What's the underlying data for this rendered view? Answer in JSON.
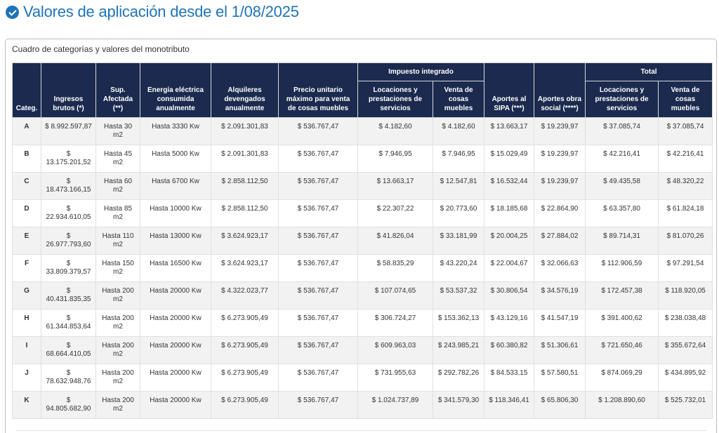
{
  "page_title": "Valores de aplicación desde el 1/08/2025",
  "colors": {
    "accent": "#1f73b7",
    "header_bg": "#1b2a4e"
  },
  "card_caption": "Cuadro de categorías y valores del monotributo",
  "headers": {
    "categ": "Categ.",
    "ingresos": "Ingresos brutos (*)",
    "superficie": "Sup. Afectada (**)",
    "energia": "Energía eléctrica consumida anualmente",
    "alquileres": "Alquileres devengados anualmente",
    "precio": "Precio unitario máximo para venta de cosas muebles",
    "impuesto_group": "Impuesto integrado",
    "imp_locaciones": "Locaciones y prestaciones de servicios",
    "imp_venta": "Venta de cosas muebles",
    "sipa": "Aportes al SIPA (***)",
    "obra_social": "Aportes obra social (****)",
    "total_group": "Total",
    "tot_locaciones": "Locaciones y prestaciones de servicios",
    "tot_venta": "Venta de cosas muebles"
  },
  "rows": [
    {
      "cat": "A",
      "ingresos": "$ 8.992.597,87",
      "sup": "Hasta 30 m2",
      "energia": "Hasta 3330 Kw",
      "alquileres": "$ 2.091.301,83",
      "precio": "$ 536.767,47",
      "imp_loc": "$ 4.182,60",
      "imp_venta": "$ 4.182,60",
      "sipa": "$ 13.663,17",
      "obra": "$ 19.239,97",
      "tot_loc": "$ 37.085,74",
      "tot_venta": "$ 37.085,74"
    },
    {
      "cat": "B",
      "ingresos": "$ 13.175.201,52",
      "sup": "Hasta 45 m2",
      "energia": "Hasta 5000 Kw",
      "alquileres": "$ 2.091.301,83",
      "precio": "$ 536.767,47",
      "imp_loc": "$ 7.946,95",
      "imp_venta": "$ 7.946,95",
      "sipa": "$ 15.029,49",
      "obra": "$ 19.239,97",
      "tot_loc": "$ 42.216,41",
      "tot_venta": "$ 42.216,41"
    },
    {
      "cat": "C",
      "ingresos": "$ 18.473.166,15",
      "sup": "Hasta 60 m2",
      "energia": "Hasta 6700 Kw",
      "alquileres": "$ 2.858.112,50",
      "precio": "$ 536.767,47",
      "imp_loc": "$ 13.663,17",
      "imp_venta": "$ 12.547,81",
      "sipa": "$ 16.532,44",
      "obra": "$ 19.239,97",
      "tot_loc": "$ 49.435,58",
      "tot_venta": "$ 48.320,22"
    },
    {
      "cat": "D",
      "ingresos": "$ 22.934.610,05",
      "sup": "Hasta 85 m2",
      "energia": "Hasta 10000 Kw",
      "alquileres": "$ 2.858.112,50",
      "precio": "$ 536.767,47",
      "imp_loc": "$ 22.307,22",
      "imp_venta": "$ 20.773,60",
      "sipa": "$ 18.185,68",
      "obra": "$ 22.864,90",
      "tot_loc": "$ 63.357,80",
      "tot_venta": "$ 61.824,18"
    },
    {
      "cat": "E",
      "ingresos": "$ 26.977.793,60",
      "sup": "Hasta 110 m2",
      "energia": "Hasta 13000 Kw",
      "alquileres": "$ 3.624.923,17",
      "precio": "$ 536.767,47",
      "imp_loc": "$ 41.826,04",
      "imp_venta": "$ 33.181,99",
      "sipa": "$ 20.004,25",
      "obra": "$ 27.884,02",
      "tot_loc": "$ 89.714,31",
      "tot_venta": "$ 81.070,26"
    },
    {
      "cat": "F",
      "ingresos": "$ 33.809.379,57",
      "sup": "Hasta 150 m2",
      "energia": "Hasta 16500 Kw",
      "alquileres": "$ 3.624.923,17",
      "precio": "$ 536.767,47",
      "imp_loc": "$ 58.835,29",
      "imp_venta": "$ 43.220,24",
      "sipa": "$ 22.004,67",
      "obra": "$ 32.066,63",
      "tot_loc": "$ 112.906,59",
      "tot_venta": "$ 97.291,54"
    },
    {
      "cat": "G",
      "ingresos": "$ 40.431.835,35",
      "sup": "Hasta 200 m2",
      "energia": "Hasta 20000 Kw",
      "alquileres": "$ 4.322.023,77",
      "precio": "$ 536.767,47",
      "imp_loc": "$ 107.074,65",
      "imp_venta": "$ 53.537,32",
      "sipa": "$ 30.806,54",
      "obra": "$ 34.576,19",
      "tot_loc": "$ 172.457,38",
      "tot_venta": "$ 118.920,05"
    },
    {
      "cat": "H",
      "ingresos": "$ 61.344.853,64",
      "sup": "Hasta 200 m2",
      "energia": "Hasta 20000 Kw",
      "alquileres": "$ 6.273.905,49",
      "precio": "$ 536.767,47",
      "imp_loc": "$ 306.724,27",
      "imp_venta": "$ 153.362,13",
      "sipa": "$ 43.129,16",
      "obra": "$ 41.547,19",
      "tot_loc": "$ 391.400,62",
      "tot_venta": "$ 238.038,48"
    },
    {
      "cat": "I",
      "ingresos": "$ 68.664.410,05",
      "sup": "Hasta 200 m2",
      "energia": "Hasta 20000 Kw",
      "alquileres": "$ 6.273.905,49",
      "precio": "$ 536.767,47",
      "imp_loc": "$ 609.963,03",
      "imp_venta": "$ 243.985,21",
      "sipa": "$ 60.380,82",
      "obra": "$ 51.306,61",
      "tot_loc": "$ 721.650,46",
      "tot_venta": "$ 355.672,64"
    },
    {
      "cat": "J",
      "ingresos": "$ 78.632.948,76",
      "sup": "Hasta 200 m2",
      "energia": "Hasta 20000 Kw",
      "alquileres": "$ 6.273.905,49",
      "precio": "$ 536.767,47",
      "imp_loc": "$ 731.955,63",
      "imp_venta": "$ 292.782,26",
      "sipa": "$ 84.533,15",
      "obra": "$ 57.580,51",
      "tot_loc": "$ 874.069,29",
      "tot_venta": "$ 434.895,92"
    },
    {
      "cat": "K",
      "ingresos": "$ 94.805.682,90",
      "sup": "Hasta 200 m2",
      "energia": "Hasta 20000 Kw",
      "alquileres": "$ 6.273.905,49",
      "precio": "$ 536.767,47",
      "imp_loc": "$ 1.024.737,89",
      "imp_venta": "$ 341.579,30",
      "sipa": "$ 118.346,41",
      "obra": "$ 65.806,30",
      "tot_loc": "$ 1.208.890,60",
      "tot_venta": "$ 525.732,01"
    }
  ]
}
